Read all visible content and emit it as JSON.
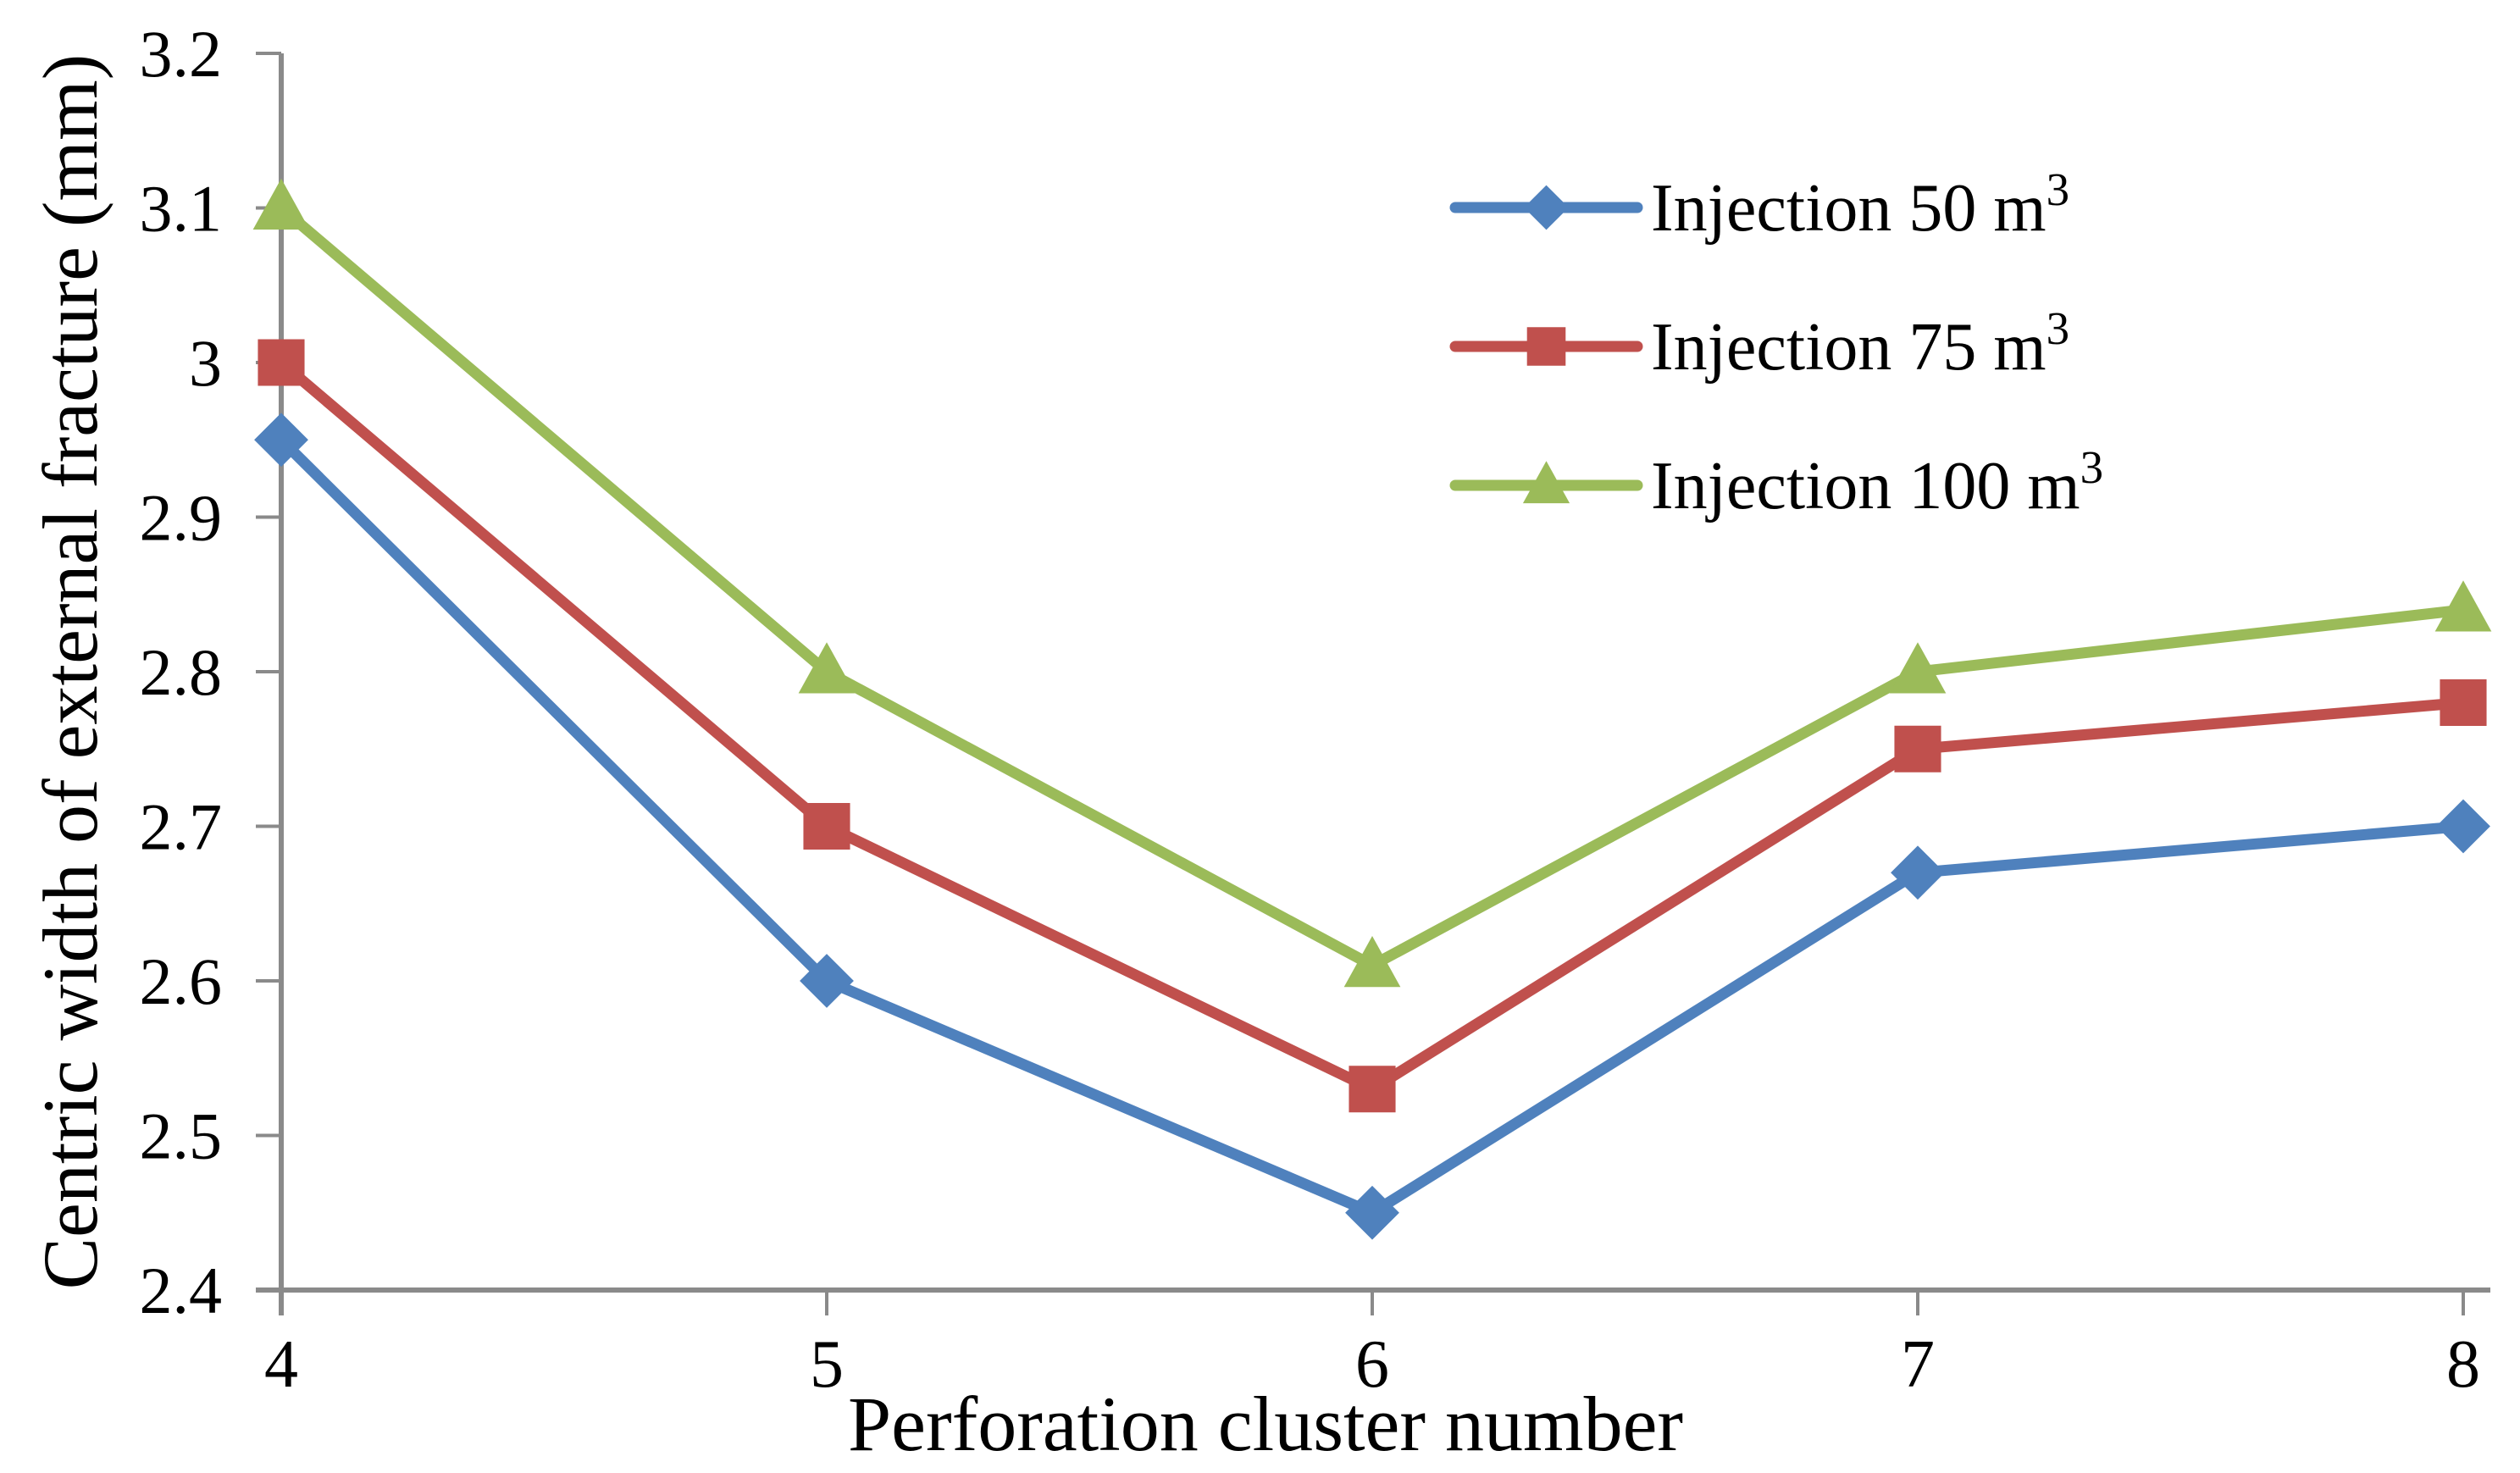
{
  "figure": {
    "background": "#FFFFFF",
    "text_color": "#000000",
    "axis_color": "#8A8A8A"
  },
  "chart_data": {
    "type": "line",
    "title": "",
    "xlabel": "Perforation cluster number",
    "ylabel": "Centric width of external fracture (mm)",
    "categories": [
      4,
      5,
      6,
      7,
      8
    ],
    "x_tick_labels": [
      "4",
      "5",
      "6",
      "7",
      "8"
    ],
    "y_ticks": [
      2.4,
      2.5,
      2.6,
      2.7,
      2.8,
      2.9,
      3.0,
      3.1,
      3.2
    ],
    "y_tick_labels": [
      "2.4",
      "2.5",
      "2.6",
      "2.7",
      "2.8",
      "2.9",
      "3",
      "3.1",
      "3.2"
    ],
    "ylim": [
      2.4,
      3.2
    ],
    "xlim": [
      4,
      8
    ],
    "grid": false,
    "legend_position": "upper-right-inside",
    "series": [
      {
        "name": "Injection 50 m³",
        "label_base": "Injection 50 m",
        "label_sup": "3",
        "marker": "diamond",
        "color": "#4F81BD",
        "values": [
          2.95,
          2.6,
          2.45,
          2.67,
          2.7
        ]
      },
      {
        "name": "Injection 75 m³",
        "label_base": "Injection 75 m",
        "label_sup": "3",
        "marker": "square",
        "color": "#C0504D",
        "values": [
          3.0,
          2.7,
          2.53,
          2.75,
          2.78
        ]
      },
      {
        "name": "Injection 100 m³",
        "label_base": "Injection 100 m",
        "label_sup": "3",
        "marker": "triangle",
        "color": "#9BBB59",
        "values": [
          3.1,
          2.8,
          2.61,
          2.8,
          2.84
        ]
      }
    ]
  }
}
